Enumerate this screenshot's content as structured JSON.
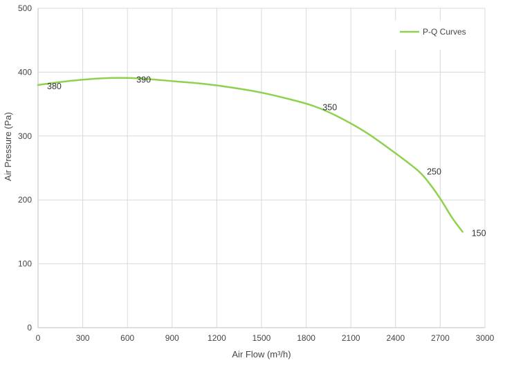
{
  "chart_data": {
    "type": "line",
    "title": "",
    "xlabel": "Air Flow  (m³/h)",
    "ylabel": "Air Pressure  (Pa)",
    "xlim": [
      0,
      3000
    ],
    "ylim": [
      0,
      500
    ],
    "x_ticks": [
      0,
      300,
      600,
      900,
      1200,
      1500,
      1800,
      2100,
      2400,
      2700,
      3000
    ],
    "y_ticks": [
      0,
      100,
      200,
      300,
      400,
      500
    ],
    "grid": true,
    "legend_position": "top-right",
    "series": [
      {
        "name": "P-Q Curves",
        "color": "#8fd14f",
        "x": [
          0,
          200,
          400,
          500,
          600,
          700,
          900,
          1100,
          1300,
          1500,
          1700,
          1850,
          2000,
          2200,
          2400,
          2550,
          2620,
          2700,
          2780,
          2850
        ],
        "y": [
          380,
          386,
          390,
          391,
          391,
          390,
          386,
          382,
          376,
          368,
          357,
          347,
          332,
          306,
          273,
          246,
          228,
          202,
          172,
          150
        ]
      }
    ],
    "data_labels": [
      {
        "x": 0,
        "y": 380,
        "text": "380"
      },
      {
        "x": 600,
        "y": 390,
        "text": "390"
      },
      {
        "x": 1850,
        "y": 347,
        "text": "350"
      },
      {
        "x": 2550,
        "y": 246,
        "text": "250"
      },
      {
        "x": 2850,
        "y": 150,
        "text": "150"
      }
    ]
  }
}
